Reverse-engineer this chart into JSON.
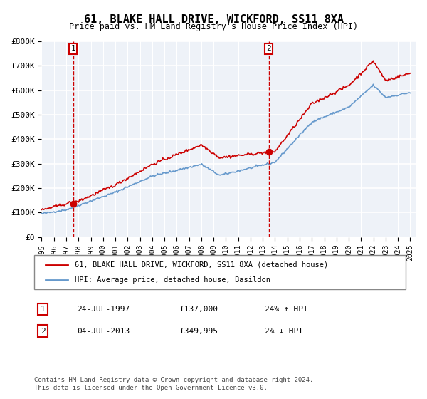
{
  "title": "61, BLAKE HALL DRIVE, WICKFORD, SS11 8XA",
  "subtitle": "Price paid vs. HM Land Registry's House Price Index (HPI)",
  "ylabel": "",
  "xlabel": "",
  "ylim": [
    0,
    800000
  ],
  "xlim_start": 1995.0,
  "xlim_end": 2025.5,
  "yticks": [
    0,
    100000,
    200000,
    300000,
    400000,
    500000,
    600000,
    700000,
    800000
  ],
  "ytick_labels": [
    "£0",
    "£100K",
    "£200K",
    "£300K",
    "£400K",
    "£500K",
    "£600K",
    "£700K",
    "£800K"
  ],
  "xticks": [
    1995,
    1996,
    1997,
    1998,
    1999,
    2000,
    2001,
    2002,
    2003,
    2004,
    2005,
    2006,
    2007,
    2008,
    2009,
    2010,
    2011,
    2012,
    2013,
    2014,
    2015,
    2016,
    2017,
    2018,
    2019,
    2020,
    2021,
    2022,
    2023,
    2024,
    2025
  ],
  "sale1_x": 1997.56,
  "sale1_y": 137000,
  "sale1_label": "1",
  "sale2_x": 2013.5,
  "sale2_y": 349995,
  "sale2_label": "2",
  "transaction1": [
    "1",
    "24-JUL-1997",
    "£137,000",
    "24% ↑ HPI"
  ],
  "transaction2": [
    "2",
    "04-JUL-2013",
    "£349,995",
    "2% ↓ HPI"
  ],
  "legend_line1": "61, BLAKE HALL DRIVE, WICKFORD, SS11 8XA (detached house)",
  "legend_line2": "HPI: Average price, detached house, Basildon",
  "footer": "Contains HM Land Registry data © Crown copyright and database right 2024.\nThis data is licensed under the Open Government Licence v3.0.",
  "bg_color": "#eef2f8",
  "plot_bg_color": "#eef2f8",
  "red_line_color": "#cc0000",
  "blue_line_color": "#6699cc",
  "grid_color": "#ffffff",
  "dashed_color": "#cc0000"
}
